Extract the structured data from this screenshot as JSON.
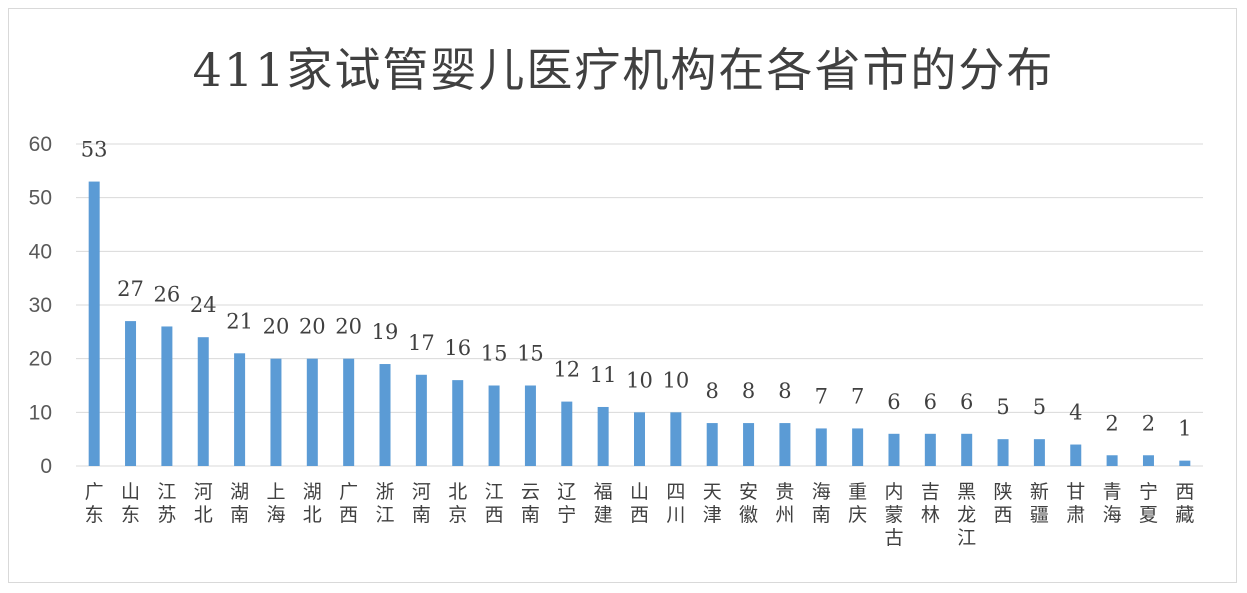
{
  "chart_data": {
    "type": "bar",
    "title": "411家试管婴儿医疗机构在各省市的分布",
    "categories": [
      "广东",
      "山东",
      "江苏",
      "河北",
      "湖南",
      "上海",
      "湖北",
      "广西",
      "浙江",
      "河南",
      "北京",
      "江西",
      "云南",
      "辽宁",
      "福建",
      "山西",
      "四川",
      "天津",
      "安徽",
      "贵州",
      "海南",
      "重庆",
      "内蒙古",
      "吉林",
      "黑龙江",
      "陕西",
      "新疆",
      "甘肃",
      "青海",
      "宁夏",
      "西藏"
    ],
    "values": [
      53,
      27,
      26,
      24,
      21,
      20,
      20,
      20,
      19,
      17,
      16,
      15,
      15,
      12,
      11,
      10,
      10,
      8,
      8,
      8,
      7,
      7,
      6,
      6,
      6,
      5,
      5,
      4,
      2,
      2,
      1
    ],
    "ylim": [
      0,
      60
    ],
    "yticks": [
      0,
      10,
      20,
      30,
      40,
      50,
      60
    ],
    "grid": true,
    "legend": "none",
    "bar_color": "#5b9bd5",
    "grid_color": "#d9d9d9"
  }
}
